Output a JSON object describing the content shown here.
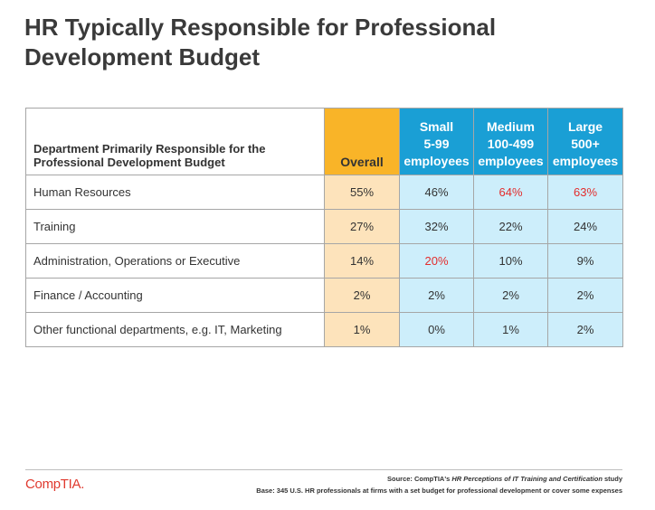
{
  "title": "HR Typically Responsible for Professional Development Budget",
  "table": {
    "header": {
      "department": "Department Primarily Responsible for the Professional Development Budget",
      "overall": "Overall",
      "small": {
        "line1": "Small",
        "line2": "5-99",
        "line3": "employees"
      },
      "medium": {
        "line1": "Medium",
        "line2": "100-499",
        "line3": "employees"
      },
      "large": {
        "line1": "Large",
        "line2": "500+",
        "line3": "employees"
      }
    },
    "rows": [
      {
        "department": "Human Resources",
        "overall": "55%",
        "small": "46%",
        "medium": "64%",
        "large": "63%"
      },
      {
        "department": "Training",
        "overall": "27%",
        "small": "32%",
        "medium": "22%",
        "large": "24%"
      },
      {
        "department": "Administration, Operations or Executive",
        "overall": "14%",
        "small": "20%",
        "medium": "10%",
        "large": "9%"
      },
      {
        "department": "Finance / Accounting",
        "overall": "2%",
        "small": "2%",
        "medium": "2%",
        "large": "2%"
      },
      {
        "department": "Other functional departments, e.g. IT, Marketing",
        "overall": "1%",
        "small": "0%",
        "medium": "1%",
        "large": "2%"
      }
    ]
  },
  "footer": {
    "logo": "CompTIA.",
    "source_prefix": "Source: CompTIA's ",
    "source_title": "HR Perceptions of IT Training and Certification",
    "source_suffix": " study",
    "base": "Base: 345 U.S. HR professionals at firms with a set budget for professional development or cover some expenses"
  },
  "colors": {
    "overall_header": "#f9b428",
    "overall_cell": "#fde3bb",
    "size_header": "#1a9fd5",
    "size_cell": "#cdeefb",
    "highlight_text": "#e32d2d",
    "logo": "#e03a2f"
  }
}
